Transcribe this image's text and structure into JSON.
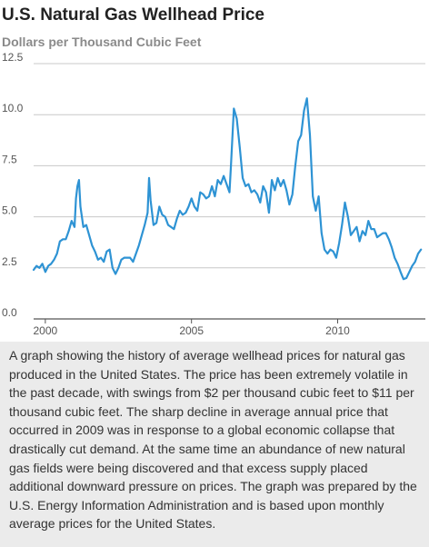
{
  "chart_data": {
    "type": "line",
    "title": "U.S. Natural Gas Wellhead Price",
    "subtitle": "Dollars per Thousand Cubic Feet",
    "xlabel": "",
    "ylabel": "",
    "xlim": [
      1999.6,
      2013.0
    ],
    "ylim": [
      0,
      12.5
    ],
    "x_ticks": [
      2000,
      2005,
      2010
    ],
    "x_tick_labels": [
      "2000",
      "2005",
      "2010"
    ],
    "y_ticks": [
      0,
      2.5,
      5.0,
      7.5,
      10.0,
      12.5
    ],
    "y_tick_labels": [
      "0.0",
      "2.5",
      "5.0",
      "7.5",
      "10.0",
      "12.5"
    ],
    "grid": "horizontal",
    "legend": "none",
    "series": [
      {
        "color": "#2e93d4",
        "points": [
          [
            1999.6,
            2.4
          ],
          [
            1999.7,
            2.6
          ],
          [
            1999.8,
            2.5
          ],
          [
            1999.9,
            2.7
          ],
          [
            2000.0,
            2.3
          ],
          [
            2000.1,
            2.6
          ],
          [
            2000.2,
            2.7
          ],
          [
            2000.3,
            2.9
          ],
          [
            2000.4,
            3.2
          ],
          [
            2000.5,
            3.8
          ],
          [
            2000.6,
            3.9
          ],
          [
            2000.7,
            3.9
          ],
          [
            2000.8,
            4.3
          ],
          [
            2000.9,
            4.8
          ],
          [
            2001.0,
            4.5
          ],
          [
            2001.05,
            5.9
          ],
          [
            2001.1,
            6.5
          ],
          [
            2001.15,
            6.8
          ],
          [
            2001.2,
            5.5
          ],
          [
            2001.3,
            4.5
          ],
          [
            2001.4,
            4.6
          ],
          [
            2001.5,
            4.1
          ],
          [
            2001.6,
            3.6
          ],
          [
            2001.7,
            3.3
          ],
          [
            2001.8,
            2.9
          ],
          [
            2001.9,
            3.0
          ],
          [
            2002.0,
            2.8
          ],
          [
            2002.1,
            3.3
          ],
          [
            2002.2,
            3.4
          ],
          [
            2002.3,
            2.5
          ],
          [
            2002.4,
            2.2
          ],
          [
            2002.5,
            2.5
          ],
          [
            2002.6,
            2.9
          ],
          [
            2002.7,
            3.0
          ],
          [
            2002.8,
            3.0
          ],
          [
            2002.9,
            3.0
          ],
          [
            2003.0,
            2.8
          ],
          [
            2003.1,
            3.2
          ],
          [
            2003.2,
            3.6
          ],
          [
            2003.3,
            4.1
          ],
          [
            2003.4,
            4.6
          ],
          [
            2003.5,
            5.2
          ],
          [
            2003.55,
            6.9
          ],
          [
            2003.6,
            5.8
          ],
          [
            2003.7,
            4.6
          ],
          [
            2003.8,
            4.7
          ],
          [
            2003.9,
            5.5
          ],
          [
            2004.0,
            5.1
          ],
          [
            2004.1,
            5.0
          ],
          [
            2004.2,
            4.6
          ],
          [
            2004.3,
            4.5
          ],
          [
            2004.4,
            4.4
          ],
          [
            2004.5,
            4.9
          ],
          [
            2004.6,
            5.3
          ],
          [
            2004.7,
            5.1
          ],
          [
            2004.8,
            5.2
          ],
          [
            2004.9,
            5.5
          ],
          [
            2005.0,
            5.9
          ],
          [
            2005.1,
            5.5
          ],
          [
            2005.2,
            5.3
          ],
          [
            2005.3,
            6.2
          ],
          [
            2005.4,
            6.1
          ],
          [
            2005.5,
            5.9
          ],
          [
            2005.6,
            6.0
          ],
          [
            2005.7,
            6.5
          ],
          [
            2005.8,
            6.0
          ],
          [
            2005.9,
            6.8
          ],
          [
            2006.0,
            6.6
          ],
          [
            2006.1,
            7.0
          ],
          [
            2006.2,
            6.6
          ],
          [
            2006.3,
            6.2
          ],
          [
            2006.35,
            7.5
          ],
          [
            2006.45,
            10.3
          ],
          [
            2006.55,
            9.8
          ],
          [
            2006.65,
            8.4
          ],
          [
            2006.75,
            6.9
          ],
          [
            2006.85,
            6.5
          ],
          [
            2006.95,
            6.6
          ],
          [
            2007.05,
            6.2
          ],
          [
            2007.15,
            6.3
          ],
          [
            2007.25,
            6.1
          ],
          [
            2007.35,
            5.7
          ],
          [
            2007.45,
            6.5
          ],
          [
            2007.55,
            6.2
          ],
          [
            2007.65,
            5.2
          ],
          [
            2007.75,
            6.8
          ],
          [
            2007.85,
            6.3
          ],
          [
            2007.95,
            6.9
          ],
          [
            2008.05,
            6.5
          ],
          [
            2008.15,
            6.8
          ],
          [
            2008.25,
            6.3
          ],
          [
            2008.35,
            5.6
          ],
          [
            2008.45,
            6.1
          ],
          [
            2008.55,
            7.5
          ],
          [
            2008.65,
            8.7
          ],
          [
            2008.75,
            9.0
          ],
          [
            2008.85,
            10.2
          ],
          [
            2008.95,
            10.8
          ],
          [
            2009.05,
            9.0
          ],
          [
            2009.15,
            6.0
          ],
          [
            2009.25,
            5.3
          ],
          [
            2009.35,
            6.0
          ],
          [
            2009.45,
            4.2
          ],
          [
            2009.55,
            3.4
          ],
          [
            2009.65,
            3.2
          ],
          [
            2009.75,
            3.4
          ],
          [
            2009.85,
            3.3
          ],
          [
            2009.95,
            3.0
          ],
          [
            2010.05,
            3.7
          ],
          [
            2010.15,
            4.6
          ],
          [
            2010.25,
            5.7
          ],
          [
            2010.35,
            5.0
          ],
          [
            2010.45,
            4.1
          ],
          [
            2010.55,
            4.3
          ],
          [
            2010.65,
            4.5
          ],
          [
            2010.75,
            3.8
          ],
          [
            2010.85,
            4.3
          ],
          [
            2010.95,
            4.1
          ],
          [
            2011.05,
            4.8
          ],
          [
            2011.15,
            4.4
          ],
          [
            2011.25,
            4.4
          ],
          [
            2011.35,
            4.0
          ],
          [
            2011.45,
            4.1
          ],
          [
            2011.55,
            4.2
          ],
          [
            2011.65,
            4.2
          ],
          [
            2011.75,
            3.9
          ],
          [
            2011.85,
            3.5
          ],
          [
            2011.95,
            3.0
          ],
          [
            2012.05,
            2.7
          ],
          [
            2012.15,
            2.3
          ],
          [
            2012.25,
            1.95
          ],
          [
            2012.35,
            2.0
          ],
          [
            2012.45,
            2.3
          ],
          [
            2012.55,
            2.6
          ],
          [
            2012.65,
            2.8
          ],
          [
            2012.75,
            3.2
          ],
          [
            2012.85,
            3.4
          ]
        ]
      }
    ]
  },
  "caption": "A graph showing the history of average wellhead prices for natural gas produced in the United States. The price has been extremely volatile in the past decade, with swings from $2 per thousand cubic feet to $11 per thousand cubic feet. The sharp decline in average annual price that occurred in 2009 was in response to a global economic collapse that drastically cut demand. At the same time an abundance of new natural gas fields were being discovered and that excess supply placed additional downward pressure on prices. The graph was prepared by the U.S. Energy Information Administration and is based upon monthly average prices for the United States."
}
